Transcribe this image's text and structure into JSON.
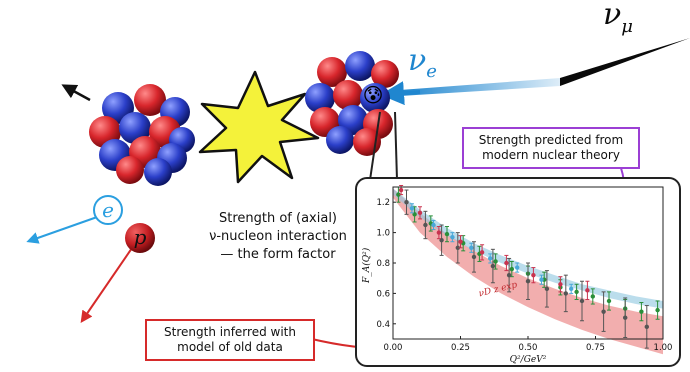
{
  "labels": {
    "nu_mu": "ν",
    "nu_mu_sub": "μ",
    "nu_e": "ν",
    "nu_e_sub": "e",
    "electron": "e",
    "proton": "p",
    "emoji": "😰"
  },
  "caption": {
    "line1": "Strength of (axial)",
    "line2": "ν-nucleon interaction",
    "line3": "— the form factor"
  },
  "callouts": {
    "predicted": "Strength predicted from modern nuclear theory",
    "inferred": "Strength inferred with model of old data"
  },
  "colors": {
    "proton": "#d8262c",
    "neutron": "#2b3fc9",
    "nu_mu_line": "#0a0a0a",
    "nu_e_line": "#1f86cf",
    "electron": "#2b9fe0",
    "proton_arrow": "#d62a2a",
    "burst": "#f4f23a",
    "predicted_border": "#9b3fd4",
    "inferred_border": "#d62a2a"
  },
  "chart_data": {
    "type": "line",
    "xlabel": "Q²/GeV²",
    "ylabel": "F_A(Q²)",
    "xlim": [
      0.0,
      1.0
    ],
    "ylim": [
      0.3,
      1.3
    ],
    "xticks": [
      "0.00",
      "0.25",
      "0.50",
      "0.75",
      "1.00"
    ],
    "yticks": [
      "0.4",
      "0.6",
      "0.8",
      "1.0",
      "1.2"
    ],
    "band_label": "νD z exp",
    "bands": [
      {
        "color": "#e86b6b",
        "x": [
          0.0,
          0.1,
          0.2,
          0.3,
          0.4,
          0.5,
          0.6,
          0.7,
          0.8,
          0.9,
          1.0
        ],
        "lower": [
          1.23,
          1.0,
          0.84,
          0.71,
          0.6,
          0.51,
          0.43,
          0.36,
          0.3,
          0.25,
          0.2
        ],
        "upper": [
          1.29,
          1.13,
          0.99,
          0.88,
          0.78,
          0.7,
          0.63,
          0.57,
          0.52,
          0.48,
          0.45
        ]
      },
      {
        "color": "#8ec6e0",
        "x": [
          0.0,
          0.1,
          0.2,
          0.3,
          0.4,
          0.5,
          0.6,
          0.7,
          0.8,
          0.9,
          1.0
        ],
        "lower": [
          1.25,
          1.1,
          0.98,
          0.88,
          0.8,
          0.73,
          0.67,
          0.62,
          0.57,
          0.53,
          0.5
        ],
        "upper": [
          1.29,
          1.15,
          1.03,
          0.93,
          0.85,
          0.78,
          0.72,
          0.66,
          0.62,
          0.58,
          0.55
        ]
      }
    ],
    "series": [
      {
        "color": "#2a8f3a",
        "x": [
          0.02,
          0.08,
          0.14,
          0.2,
          0.26,
          0.32,
          0.38,
          0.44,
          0.5,
          0.56,
          0.62,
          0.68,
          0.74,
          0.8,
          0.86,
          0.92,
          0.98
        ],
        "y": [
          1.25,
          1.12,
          1.06,
          0.99,
          0.93,
          0.86,
          0.81,
          0.76,
          0.73,
          0.69,
          0.64,
          0.61,
          0.58,
          0.55,
          0.5,
          0.48,
          0.49
        ],
        "err": [
          0.05,
          0.05,
          0.05,
          0.05,
          0.05,
          0.05,
          0.05,
          0.05,
          0.05,
          0.05,
          0.05,
          0.05,
          0.05,
          0.06,
          0.06,
          0.06,
          0.06
        ]
      },
      {
        "color": "#555555",
        "x": [
          0.05,
          0.12,
          0.18,
          0.24,
          0.3,
          0.37,
          0.43,
          0.5,
          0.57,
          0.64,
          0.7,
          0.78,
          0.86,
          0.94
        ],
        "y": [
          1.2,
          1.05,
          0.95,
          0.9,
          0.84,
          0.78,
          0.72,
          0.68,
          0.63,
          0.6,
          0.55,
          0.48,
          0.44,
          0.38
        ],
        "err": [
          0.08,
          0.09,
          0.1,
          0.1,
          0.1,
          0.11,
          0.11,
          0.12,
          0.12,
          0.12,
          0.13,
          0.13,
          0.13,
          0.14
        ]
      },
      {
        "color": "#c9334f",
        "x": [
          0.03,
          0.1,
          0.17,
          0.25,
          0.33,
          0.42,
          0.52,
          0.62,
          0.72
        ],
        "y": [
          1.28,
          1.13,
          1.0,
          0.94,
          0.87,
          0.8,
          0.72,
          0.66,
          0.62
        ],
        "err": [
          0.03,
          0.04,
          0.04,
          0.04,
          0.05,
          0.05,
          0.05,
          0.05,
          0.06
        ]
      },
      {
        "color": "#4aa8d8",
        "x": [
          0.07,
          0.15,
          0.22,
          0.29,
          0.36,
          0.46,
          0.55,
          0.66
        ],
        "y": [
          1.16,
          1.05,
          0.97,
          0.9,
          0.83,
          0.77,
          0.69,
          0.63
        ],
        "err": [
          0.03,
          0.03,
          0.03,
          0.03,
          0.03,
          0.03,
          0.03,
          0.03
        ]
      }
    ]
  }
}
